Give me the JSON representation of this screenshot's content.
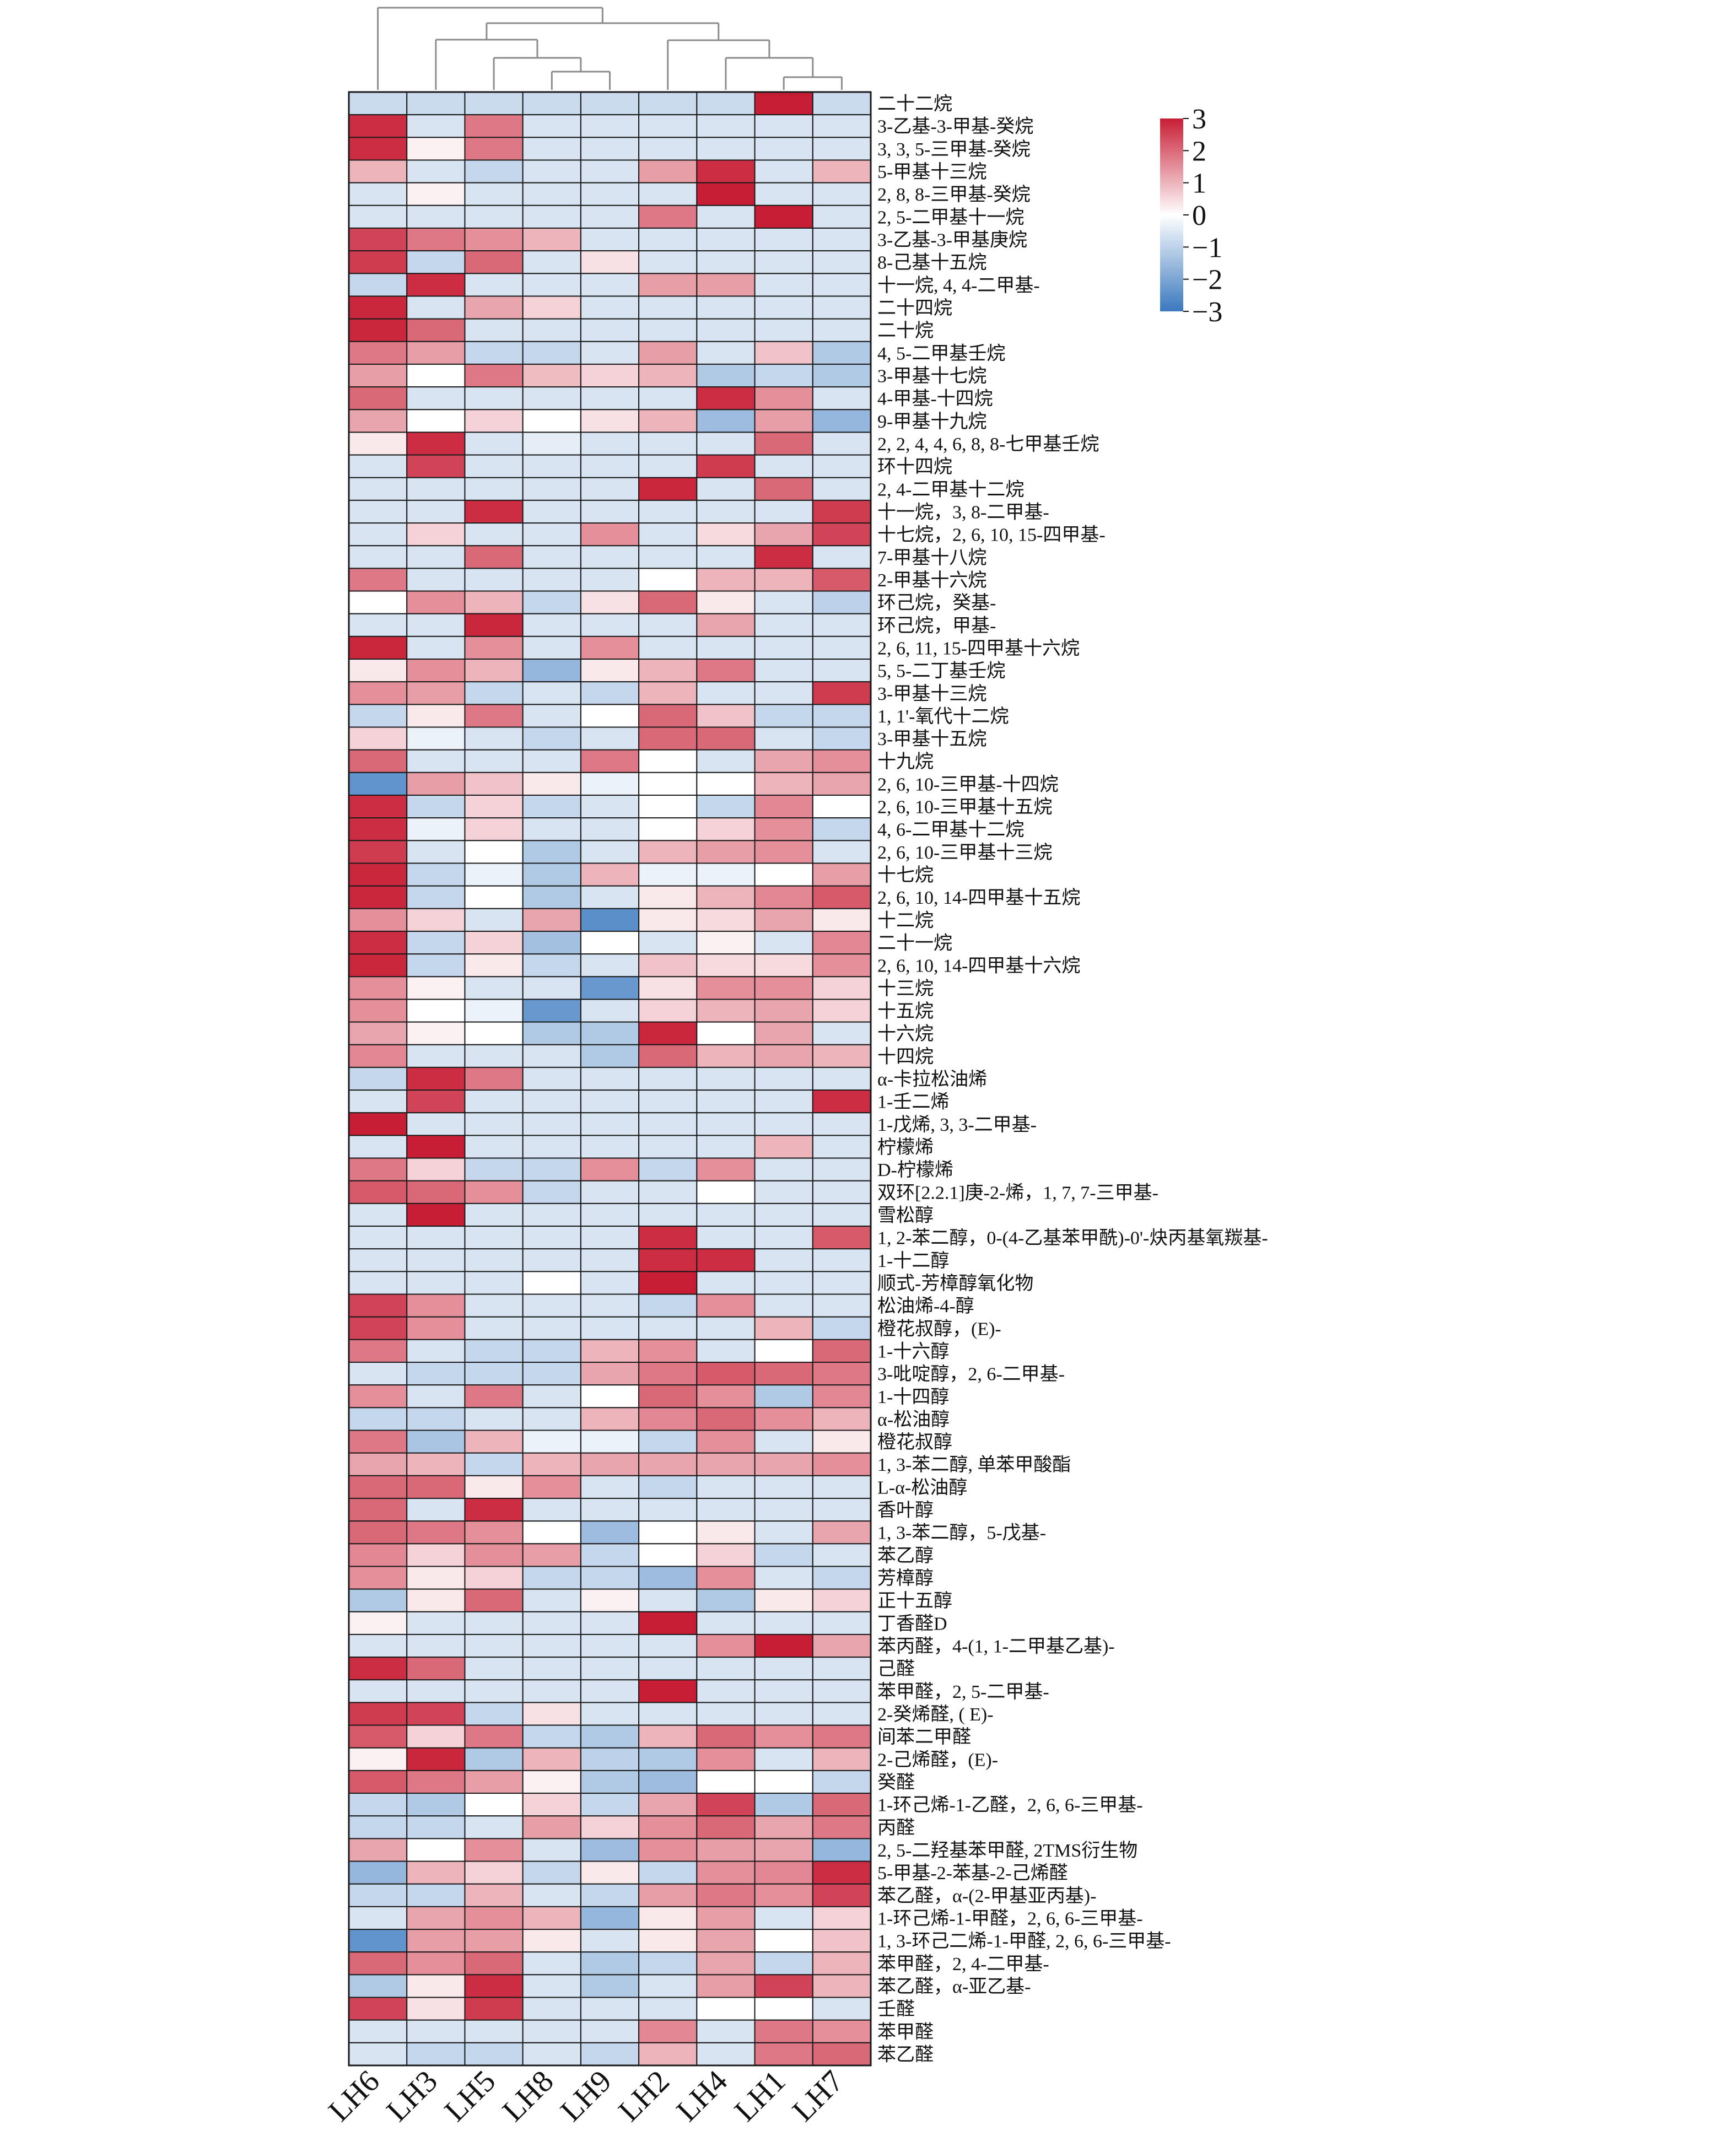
{
  "chart_data": {
    "type": "heatmap",
    "title": "",
    "columns": [
      "LH6",
      "LH3",
      "LH5",
      "LH8",
      "LH9",
      "LH2",
      "LH4",
      "LH1",
      "LH7"
    ],
    "color_scale": {
      "min": -3,
      "max": 3,
      "low": "#3a78bf",
      "mid": "#ffffff",
      "high": "#c81e35",
      "ticks": [
        3,
        2,
        1,
        0,
        -1,
        -2,
        -3
      ]
    },
    "legend_placement": "top-right",
    "dendrogram": "columns",
    "rows": [
      {
        "name": "二十二烷",
        "values": [
          -0.8,
          -0.8,
          -0.8,
          -0.8,
          -0.8,
          -0.8,
          -0.8,
          3.0,
          -0.8
        ]
      },
      {
        "name": "3-乙基-3-甲基-癸烷",
        "values": [
          2.8,
          -0.6,
          1.8,
          -0.6,
          -0.6,
          -0.6,
          -0.6,
          -0.6,
          -0.6
        ]
      },
      {
        "name": "3, 3, 5-三甲基-癸烷",
        "values": [
          2.8,
          0.2,
          1.8,
          -0.6,
          -0.6,
          -0.6,
          -0.6,
          -0.6,
          -0.6
        ]
      },
      {
        "name": "5-甲基十三烷",
        "values": [
          1.0,
          -0.6,
          -0.9,
          -0.6,
          -0.6,
          1.3,
          2.8,
          -0.6,
          1.0
        ]
      },
      {
        "name": "2, 8, 8-三甲基-癸烷",
        "values": [
          -0.6,
          0.2,
          -0.6,
          -0.6,
          -0.6,
          -0.6,
          3.0,
          -0.6,
          -0.6
        ]
      },
      {
        "name": "2, 5-二甲基十一烷",
        "values": [
          -0.6,
          -0.6,
          -0.6,
          -0.6,
          -0.6,
          1.8,
          -0.6,
          3.0,
          -0.6
        ]
      },
      {
        "name": "3-乙基-3-甲基庚烷",
        "values": [
          2.5,
          1.8,
          1.5,
          1.0,
          -0.6,
          -0.6,
          -0.6,
          -0.6,
          -0.6
        ]
      },
      {
        "name": "8-己基十五烷",
        "values": [
          2.6,
          -0.9,
          2.0,
          -0.6,
          0.4,
          -0.6,
          -0.6,
          -0.6,
          -0.6
        ]
      },
      {
        "name": "十一烷, 4, 4-二甲基-",
        "values": [
          -0.9,
          2.8,
          -0.6,
          -0.6,
          -0.6,
          1.3,
          1.3,
          -0.6,
          -0.6
        ]
      },
      {
        "name": "二十四烷",
        "values": [
          2.9,
          -0.6,
          1.2,
          0.6,
          -0.6,
          -0.6,
          -0.6,
          -0.6,
          -0.6
        ]
      },
      {
        "name": "二十烷",
        "values": [
          2.9,
          2.0,
          -0.6,
          -0.6,
          -0.6,
          -0.6,
          -0.6,
          -0.6,
          -0.6
        ]
      },
      {
        "name": "4, 5-二甲基壬烷",
        "values": [
          1.8,
          1.3,
          -0.9,
          -0.9,
          -0.6,
          1.3,
          -0.6,
          0.8,
          -1.2
        ]
      },
      {
        "name": "3-甲基十七烷",
        "values": [
          1.3,
          0.0,
          1.8,
          0.9,
          0.6,
          1.0,
          -1.2,
          -0.9,
          -1.2
        ]
      },
      {
        "name": "4-甲基-十四烷",
        "values": [
          2.0,
          -0.6,
          -0.6,
          -0.6,
          -0.6,
          -0.6,
          2.8,
          1.5,
          -0.6
        ]
      },
      {
        "name": "9-甲基十九烷",
        "values": [
          1.2,
          0.0,
          0.6,
          0.0,
          0.4,
          1.0,
          -1.5,
          1.3,
          -1.6
        ]
      },
      {
        "name": "2, 2, 4, 4, 6, 8, 8-七甲基壬烷",
        "values": [
          0.3,
          2.8,
          -0.6,
          -0.4,
          -0.6,
          -0.6,
          -0.6,
          2.0,
          -0.6
        ]
      },
      {
        "name": "环十四烷",
        "values": [
          -0.6,
          2.5,
          -0.6,
          -0.6,
          -0.6,
          -0.6,
          2.6,
          -0.6,
          -0.6
        ]
      },
      {
        "name": "2, 4-二甲基十二烷",
        "values": [
          -0.6,
          -0.6,
          -0.6,
          -0.6,
          -0.6,
          2.9,
          -0.6,
          2.0,
          -0.6
        ]
      },
      {
        "name": "十一烷，3, 8-二甲基-",
        "values": [
          -0.6,
          -0.6,
          2.8,
          -0.6,
          -0.6,
          -0.6,
          -0.6,
          -0.6,
          2.6
        ]
      },
      {
        "name": "十七烷，2, 6, 10, 15-四甲基-",
        "values": [
          -0.6,
          0.6,
          -0.6,
          -0.6,
          1.5,
          -0.6,
          0.5,
          1.2,
          2.5
        ]
      },
      {
        "name": "7-甲基十八烷",
        "values": [
          -0.6,
          -0.6,
          2.0,
          -0.6,
          -0.6,
          -0.6,
          -0.6,
          2.8,
          -0.6
        ]
      },
      {
        "name": "2-甲基十六烷",
        "values": [
          1.8,
          -0.6,
          -0.6,
          -0.6,
          -0.6,
          0.0,
          1.0,
          1.0,
          2.2
        ]
      },
      {
        "name": "环己烷，癸基-",
        "values": [
          0.0,
          1.5,
          1.0,
          -0.9,
          0.4,
          2.0,
          0.3,
          -0.6,
          -1.0
        ]
      },
      {
        "name": "环己烷，甲基-",
        "values": [
          -0.6,
          -0.6,
          2.9,
          -0.6,
          -0.6,
          -0.6,
          1.2,
          -0.6,
          -0.6
        ]
      },
      {
        "name": "2, 6, 11, 15-四甲基十六烷",
        "values": [
          2.9,
          -0.6,
          1.5,
          -0.6,
          1.5,
          -0.6,
          -0.6,
          -0.6,
          -0.6
        ]
      },
      {
        "name": "5, 5-二丁基壬烷",
        "values": [
          0.3,
          1.5,
          1.0,
          -1.6,
          0.3,
          1.0,
          1.8,
          -0.6,
          -0.6
        ]
      },
      {
        "name": "3-甲基十三烷",
        "values": [
          1.5,
          1.3,
          -0.9,
          -0.6,
          -0.9,
          1.0,
          -0.6,
          -0.6,
          2.6
        ]
      },
      {
        "name": "1, 1'-氧代十二烷",
        "values": [
          -0.9,
          0.3,
          1.8,
          -0.6,
          0.0,
          2.0,
          0.8,
          -0.9,
          -0.9
        ]
      },
      {
        "name": "3-甲基十五烷",
        "values": [
          0.6,
          -0.3,
          -0.6,
          -0.9,
          -0.6,
          2.0,
          2.0,
          -0.6,
          -0.9
        ]
      },
      {
        "name": "十九烷",
        "values": [
          2.0,
          -0.6,
          -0.6,
          -0.6,
          1.8,
          0.0,
          -0.6,
          1.2,
          1.5
        ]
      },
      {
        "name": "2, 6, 10-三甲基-十四烷",
        "values": [
          -2.4,
          1.3,
          0.8,
          0.3,
          -0.3,
          0.0,
          0.0,
          1.0,
          1.2
        ]
      },
      {
        "name": "2, 6, 10-三甲基十五烷",
        "values": [
          2.8,
          -0.9,
          0.6,
          -0.9,
          -0.6,
          0.0,
          -0.9,
          1.6,
          0.0
        ]
      },
      {
        "name": "4, 6-二甲基十二烷",
        "values": [
          2.8,
          -0.3,
          0.6,
          -0.6,
          -0.6,
          0.0,
          0.6,
          1.5,
          -0.9
        ]
      },
      {
        "name": "2, 6, 10-三甲基十三烷",
        "values": [
          2.6,
          -0.6,
          0.0,
          -1.2,
          -0.6,
          1.0,
          1.3,
          1.5,
          -0.6
        ]
      },
      {
        "name": "十七烷",
        "values": [
          2.9,
          -0.9,
          -0.3,
          -1.2,
          1.0,
          -0.3,
          -0.3,
          0.0,
          1.3
        ]
      },
      {
        "name": "2, 6, 10, 14-四甲基十五烷",
        "values": [
          2.9,
          -0.9,
          0.0,
          -1.2,
          -0.6,
          0.3,
          1.0,
          1.6,
          2.2
        ]
      },
      {
        "name": "十二烷",
        "values": [
          1.5,
          0.6,
          -0.6,
          1.2,
          -2.5,
          0.3,
          0.5,
          1.2,
          0.3
        ]
      },
      {
        "name": "二十一烷",
        "values": [
          2.8,
          -0.9,
          0.6,
          -1.4,
          0.0,
          -0.6,
          0.2,
          -0.6,
          1.6
        ]
      },
      {
        "name": "2, 6, 10, 14-四甲基十六烷",
        "values": [
          2.9,
          -0.9,
          0.3,
          -0.9,
          -0.6,
          0.8,
          0.5,
          0.5,
          1.5
        ]
      },
      {
        "name": "十三烷",
        "values": [
          1.5,
          0.2,
          -0.6,
          -0.6,
          -2.3,
          0.4,
          1.5,
          1.5,
          0.6
        ]
      },
      {
        "name": "十五烷",
        "values": [
          1.5,
          0.0,
          -0.3,
          -2.3,
          -0.6,
          0.6,
          1.0,
          1.2,
          0.6
        ]
      },
      {
        "name": "十六烷",
        "values": [
          1.2,
          0.2,
          0.0,
          -1.2,
          -1.2,
          2.9,
          0.0,
          1.2,
          -0.6
        ]
      },
      {
        "name": "十四烷",
        "values": [
          1.6,
          -0.6,
          -0.6,
          -0.6,
          -1.2,
          2.0,
          1.0,
          1.2,
          1.0
        ]
      },
      {
        "name": "α-卡拉松油烯",
        "values": [
          -0.9,
          2.8,
          1.8,
          -0.6,
          -0.6,
          -0.6,
          -0.6,
          -0.6,
          -0.6
        ]
      },
      {
        "name": "1-壬二烯",
        "values": [
          -0.6,
          2.5,
          -0.6,
          -0.6,
          -0.6,
          -0.6,
          -0.6,
          -0.6,
          2.8
        ]
      },
      {
        "name": "1-戊烯, 3, 3-二甲基-",
        "values": [
          3.0,
          -0.6,
          -0.6,
          -0.6,
          -0.6,
          -0.6,
          -0.6,
          -0.6,
          -0.6
        ]
      },
      {
        "name": "柠檬烯",
        "values": [
          -0.6,
          3.0,
          -0.6,
          -0.6,
          -0.6,
          -0.6,
          -0.6,
          1.0,
          -0.6
        ]
      },
      {
        "name": "D-柠檬烯",
        "values": [
          1.8,
          0.6,
          -0.9,
          -0.9,
          1.5,
          -0.9,
          1.5,
          -0.6,
          -0.6
        ]
      },
      {
        "name": "双环[2.2.1]庚-2-烯，1, 7, 7-三甲基-",
        "values": [
          2.2,
          2.0,
          1.5,
          -0.9,
          -0.6,
          -0.6,
          0.0,
          -0.6,
          -0.6
        ]
      },
      {
        "name": "雪松醇",
        "values": [
          -0.6,
          3.0,
          -0.6,
          -0.6,
          -0.6,
          -0.6,
          -0.6,
          -0.6,
          -0.6
        ]
      },
      {
        "name": "1, 2-苯二醇，0-(4-乙基苯甲酰)-0'-炔丙基氧羰基-",
        "values": [
          -0.6,
          -0.6,
          -0.6,
          -0.6,
          -0.6,
          2.8,
          -0.6,
          -0.6,
          2.2
        ]
      },
      {
        "name": "1-十二醇",
        "values": [
          -0.6,
          -0.6,
          -0.6,
          -0.6,
          -0.6,
          2.8,
          2.8,
          -0.6,
          -0.6
        ]
      },
      {
        "name": "顺式-芳樟醇氧化物",
        "values": [
          -0.6,
          -0.6,
          -0.6,
          0.0,
          -0.6,
          3.0,
          -0.6,
          -0.6,
          -0.6
        ]
      },
      {
        "name": "松油烯-4-醇",
        "values": [
          2.5,
          1.5,
          -0.6,
          -0.6,
          -0.6,
          -0.9,
          1.5,
          -0.6,
          -0.6
        ]
      },
      {
        "name": "橙花叔醇，(E)-",
        "values": [
          2.5,
          1.5,
          -0.6,
          -0.6,
          -0.6,
          -0.6,
          -0.6,
          1.0,
          -0.9
        ]
      },
      {
        "name": "1-十六醇",
        "values": [
          1.8,
          -0.6,
          -0.9,
          -0.9,
          1.0,
          1.5,
          -0.6,
          0.0,
          2.0
        ]
      },
      {
        "name": "3-吡啶醇，2, 6-二甲基-",
        "values": [
          -0.6,
          -0.9,
          -0.9,
          -0.9,
          1.2,
          1.8,
          2.2,
          2.0,
          1.8
        ]
      },
      {
        "name": "1-十四醇",
        "values": [
          1.5,
          -0.6,
          1.8,
          -0.6,
          0.0,
          2.0,
          1.5,
          -1.2,
          1.6
        ]
      },
      {
        "name": "α-松油醇",
        "values": [
          -0.9,
          -0.9,
          -0.6,
          -0.6,
          1.0,
          1.6,
          2.0,
          1.5,
          1.0
        ]
      },
      {
        "name": "橙花叔醇",
        "values": [
          1.8,
          -1.3,
          1.0,
          -0.3,
          -0.3,
          -0.9,
          1.5,
          -0.6,
          0.3
        ]
      },
      {
        "name": "1, 3-苯二醇, 单苯甲酸酯",
        "values": [
          1.2,
          1.0,
          -0.9,
          1.0,
          1.2,
          1.2,
          1.2,
          1.2,
          1.5
        ]
      },
      {
        "name": "L-α-松油醇",
        "values": [
          2.0,
          2.0,
          0.3,
          1.5,
          -0.6,
          -0.9,
          -0.6,
          -0.6,
          -0.6
        ]
      },
      {
        "name": "香叶醇",
        "values": [
          2.0,
          -0.6,
          2.8,
          -0.6,
          -0.6,
          -0.6,
          -0.6,
          -0.6,
          -0.6
        ]
      },
      {
        "name": "1, 3-苯二醇，5-戊基-",
        "values": [
          2.0,
          1.8,
          1.5,
          0.0,
          -1.5,
          0.0,
          0.3,
          -0.6,
          1.2
        ]
      },
      {
        "name": "苯乙醇",
        "values": [
          1.6,
          0.6,
          1.5,
          1.3,
          -0.9,
          0.0,
          0.6,
          -0.9,
          -0.6
        ]
      },
      {
        "name": "芳樟醇",
        "values": [
          1.5,
          0.3,
          0.6,
          -0.9,
          -0.9,
          -1.5,
          1.5,
          -0.6,
          -0.9
        ]
      },
      {
        "name": "正十五醇",
        "values": [
          -1.2,
          0.3,
          2.0,
          -0.6,
          0.2,
          -0.6,
          -1.2,
          0.3,
          0.6
        ]
      },
      {
        "name": "丁香醛D",
        "values": [
          0.2,
          -0.6,
          -0.6,
          -0.6,
          -0.6,
          3.0,
          -0.6,
          -0.6,
          -0.6
        ]
      },
      {
        "name": "苯丙醛，4-(1, 1-二甲基乙基)-",
        "values": [
          -0.6,
          -0.6,
          -0.6,
          -0.6,
          -0.6,
          -0.6,
          1.5,
          3.0,
          1.2
        ]
      },
      {
        "name": "己醛",
        "values": [
          2.8,
          2.0,
          -0.6,
          -0.6,
          -0.6,
          -0.6,
          -0.6,
          -0.6,
          -0.6
        ]
      },
      {
        "name": "苯甲醛，2, 5-二甲基-",
        "values": [
          -0.6,
          -0.6,
          -0.6,
          -0.6,
          -0.6,
          3.0,
          -0.6,
          -0.6,
          -0.6
        ]
      },
      {
        "name": "2-癸烯醛, ( E)-",
        "values": [
          2.6,
          2.5,
          -0.9,
          0.4,
          -0.6,
          -0.6,
          -0.6,
          -0.6,
          -0.6
        ]
      },
      {
        "name": "间苯二甲醛",
        "values": [
          2.2,
          0.6,
          1.8,
          -0.9,
          -1.2,
          1.0,
          2.0,
          1.5,
          1.8
        ]
      },
      {
        "name": "2-己烯醛，(E)-",
        "values": [
          0.2,
          2.9,
          -1.2,
          1.0,
          -1.0,
          -1.2,
          1.5,
          -0.6,
          1.0
        ]
      },
      {
        "name": "癸醛",
        "values": [
          2.2,
          1.8,
          1.3,
          0.2,
          -1.2,
          -1.5,
          0.0,
          0.0,
          -0.9
        ]
      },
      {
        "name": "1-环己烯-1-乙醛，2, 6, 6-三甲基-",
        "values": [
          -0.9,
          -1.2,
          0.0,
          0.6,
          -0.9,
          1.2,
          2.5,
          -1.2,
          2.0
        ]
      },
      {
        "name": "丙醛",
        "values": [
          -0.9,
          -0.9,
          -0.6,
          1.3,
          0.6,
          1.5,
          2.0,
          1.2,
          1.8
        ]
      },
      {
        "name": "2, 5-二羟基苯甲醛, 2TMS衍生物",
        "values": [
          1.2,
          0.0,
          1.5,
          -0.6,
          -1.5,
          1.5,
          1.3,
          1.2,
          -1.6
        ]
      },
      {
        "name": "5-甲基-2-苯基-2-己烯醛",
        "values": [
          -1.6,
          1.0,
          0.6,
          -0.9,
          0.3,
          -0.9,
          1.5,
          1.6,
          2.8
        ]
      },
      {
        "name": "苯乙醛，α-(2-甲基亚丙基)-",
        "values": [
          -0.9,
          -0.9,
          1.0,
          -0.6,
          -0.9,
          1.3,
          1.8,
          1.5,
          2.5
        ]
      },
      {
        "name": "1-环己烯-1-甲醛，2, 6, 6-三甲基-",
        "values": [
          -0.6,
          1.2,
          1.5,
          1.0,
          -1.6,
          0.3,
          1.3,
          -0.6,
          0.6
        ]
      },
      {
        "name": "1, 3-环己二烯-1-甲醛, 2, 6, 6-三甲基-",
        "values": [
          -2.4,
          1.3,
          1.3,
          0.3,
          -0.6,
          0.3,
          1.2,
          0.0,
          0.8
        ]
      },
      {
        "name": "苯甲醛，2, 4-二甲基-",
        "values": [
          2.0,
          1.5,
          2.0,
          -0.6,
          -1.2,
          -0.9,
          1.2,
          -0.9,
          1.0
        ]
      },
      {
        "name": "苯乙醛，α-亚乙基-",
        "values": [
          -1.2,
          0.3,
          2.8,
          -0.6,
          -1.2,
          -0.6,
          1.3,
          2.5,
          1.0
        ]
      },
      {
        "name": "壬醛",
        "values": [
          2.5,
          0.4,
          2.6,
          -0.6,
          -0.6,
          -0.6,
          0.0,
          0.0,
          -0.6
        ]
      },
      {
        "name": "苯甲醛",
        "values": [
          -0.6,
          -0.6,
          -0.6,
          -0.6,
          -0.6,
          1.6,
          -0.6,
          1.8,
          1.5
        ]
      },
      {
        "name": "苯乙醛",
        "values": [
          -0.6,
          -0.9,
          -0.9,
          -0.6,
          -0.9,
          1.0,
          -0.6,
          1.8,
          2.0
        ]
      }
    ]
  }
}
